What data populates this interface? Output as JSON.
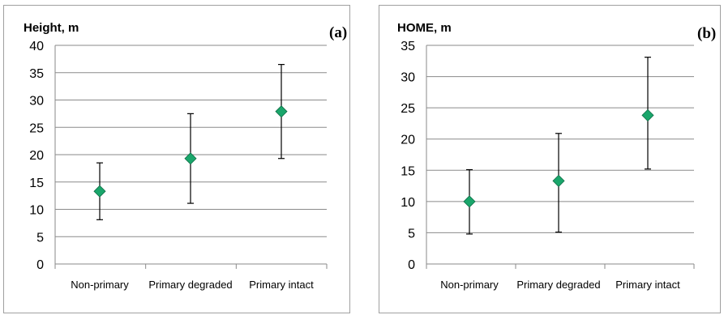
{
  "chart_data": [
    {
      "panel_label": "(a)",
      "type": "scatter",
      "ylabel": "Height, m",
      "xlabel": "",
      "categories": [
        "Non-primary",
        "Primary degraded",
        "Primary intact"
      ],
      "ylim": [
        0,
        40
      ],
      "yticks": [
        0,
        5,
        10,
        15,
        20,
        25,
        30,
        35,
        40
      ],
      "grid": true,
      "series": [
        {
          "values": [
            13.3,
            19.3,
            27.9
          ],
          "error_low": [
            8.1,
            11.1,
            19.3
          ],
          "error_high": [
            18.5,
            27.5,
            36.5
          ]
        }
      ],
      "marker_color": "#1aa66b"
    },
    {
      "panel_label": "(b)",
      "type": "scatter",
      "ylabel": "HOME, m",
      "xlabel": "",
      "categories": [
        "Non-primary",
        "Primary degraded",
        "Primary intact"
      ],
      "ylim": [
        0,
        35
      ],
      "yticks": [
        0,
        5,
        10,
        15,
        20,
        25,
        30,
        35
      ],
      "grid": true,
      "series": [
        {
          "values": [
            10.0,
            13.3,
            23.8
          ],
          "error_low": [
            4.8,
            5.1,
            15.2
          ],
          "error_high": [
            15.1,
            20.9,
            33.1
          ]
        }
      ],
      "marker_color": "#1aa66b"
    }
  ]
}
